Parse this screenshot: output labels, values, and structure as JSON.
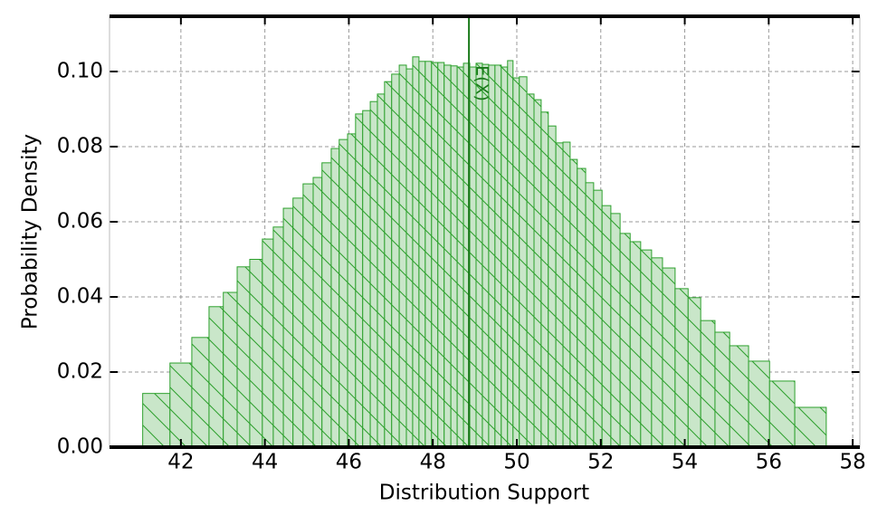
{
  "chart_data": {
    "type": "histogram",
    "xlabel": "Distribution Support",
    "ylabel": "Probability Density",
    "bins": [
      41.09,
      41.74,
      42.26,
      42.67,
      43.01,
      43.34,
      43.64,
      43.94,
      44.2,
      44.44,
      44.67,
      44.91,
      45.15,
      45.36,
      45.58,
      45.77,
      45.97,
      46.16,
      46.33,
      46.51,
      46.68,
      46.85,
      47.02,
      47.2,
      47.37,
      47.52,
      47.67,
      47.82,
      47.97,
      48.12,
      48.27,
      48.43,
      48.58,
      48.73,
      48.88,
      49.03,
      49.18,
      49.33,
      49.48,
      49.63,
      49.78,
      49.91,
      50.06,
      50.24,
      50.41,
      50.58,
      50.75,
      50.93,
      51.1,
      51.27,
      51.44,
      51.64,
      51.83,
      52.03,
      52.24,
      52.46,
      52.7,
      52.95,
      53.21,
      53.47,
      53.77,
      54.08,
      54.38,
      54.72,
      55.07,
      55.52,
      56.02,
      56.62,
      57.37
    ],
    "values": [
      0.0143,
      0.0224,
      0.0292,
      0.0374,
      0.0412,
      0.048,
      0.05,
      0.0554,
      0.0586,
      0.0636,
      0.0663,
      0.0701,
      0.0718,
      0.0757,
      0.0795,
      0.0819,
      0.0834,
      0.0887,
      0.0896,
      0.092,
      0.094,
      0.0973,
      0.0993,
      0.1017,
      0.1007,
      0.1039,
      0.1027,
      0.1027,
      0.1024,
      0.1024,
      0.1017,
      0.1015,
      0.1012,
      0.1022,
      0.1012,
      0.1022,
      0.1019,
      0.1017,
      0.1017,
      0.1012,
      0.1029,
      0.0983,
      0.0986,
      0.094,
      0.0925,
      0.0892,
      0.0855,
      0.081,
      0.0812,
      0.0766,
      0.0742,
      0.0704,
      0.0684,
      0.0643,
      0.0622,
      0.0569,
      0.0547,
      0.0525,
      0.0504,
      0.0477,
      0.0422,
      0.0398,
      0.0337,
      0.0306,
      0.027,
      0.0229,
      0.0176,
      0.0106
    ],
    "color": "#2ca02c",
    "fill": "#c9e6c9",
    "mean_line": {
      "value": 48.86,
      "label": "E(X)"
    },
    "xlim": [
      40.3,
      58.17
    ],
    "ylim": [
      0,
      0.1147
    ],
    "xticks": [
      42,
      44,
      46,
      48,
      50,
      52,
      54,
      56,
      58
    ],
    "yticks": [
      {
        "value": 0,
        "label": "0.00"
      },
      {
        "value": 0.02,
        "label": "0.02"
      },
      {
        "value": 0.04,
        "label": "0.04"
      },
      {
        "value": 0.06,
        "label": "0.06"
      },
      {
        "value": 0.08,
        "label": "0.08"
      },
      {
        "value": 0.1,
        "label": "0.10"
      }
    ],
    "grid": true
  }
}
